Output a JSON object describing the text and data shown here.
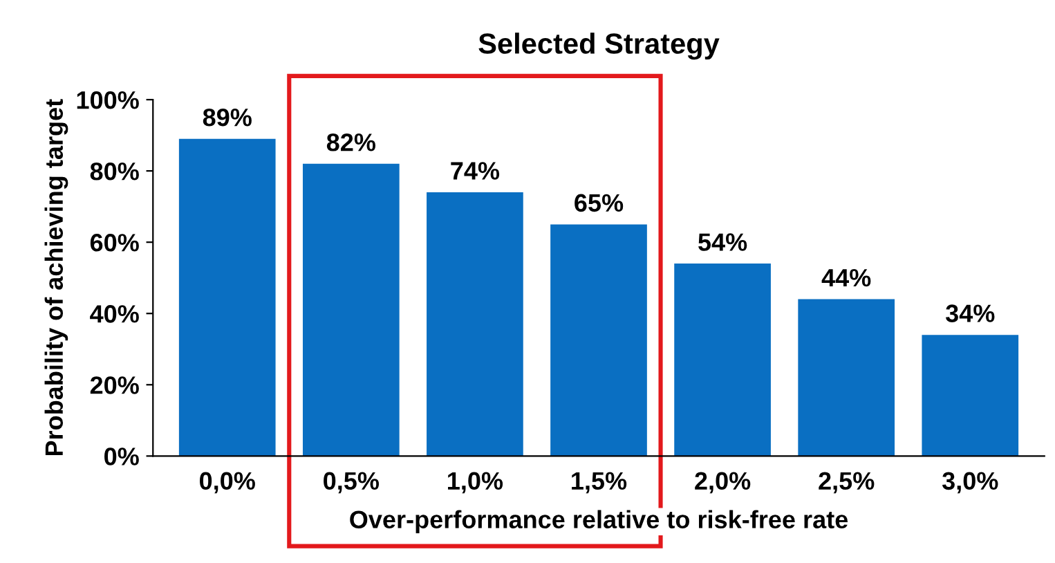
{
  "chart_data": {
    "type": "bar",
    "title": "Selected Strategy",
    "xlabel": "Over-performance relative to risk-free rate",
    "ylabel": "Probability of achieving target",
    "categories": [
      "0,0%",
      "0,5%",
      "1,0%",
      "1,5%",
      "2,0%",
      "2,5%",
      "3,0%"
    ],
    "values": [
      89,
      82,
      74,
      65,
      54,
      44,
      34
    ],
    "value_labels": [
      "89%",
      "82%",
      "74%",
      "65%",
      "54%",
      "44%",
      "34%"
    ],
    "color": "#0a6fc2",
    "ylim": [
      0,
      100
    ],
    "yticks": [
      {
        "value": 0,
        "label": "0%"
      },
      {
        "value": 20,
        "label": "20%"
      },
      {
        "value": 40,
        "label": "40%"
      },
      {
        "value": 60,
        "label": "60%"
      },
      {
        "value": 80,
        "label": "80%"
      },
      {
        "value": 100,
        "label": "100%"
      }
    ],
    "grid": false
  }
}
